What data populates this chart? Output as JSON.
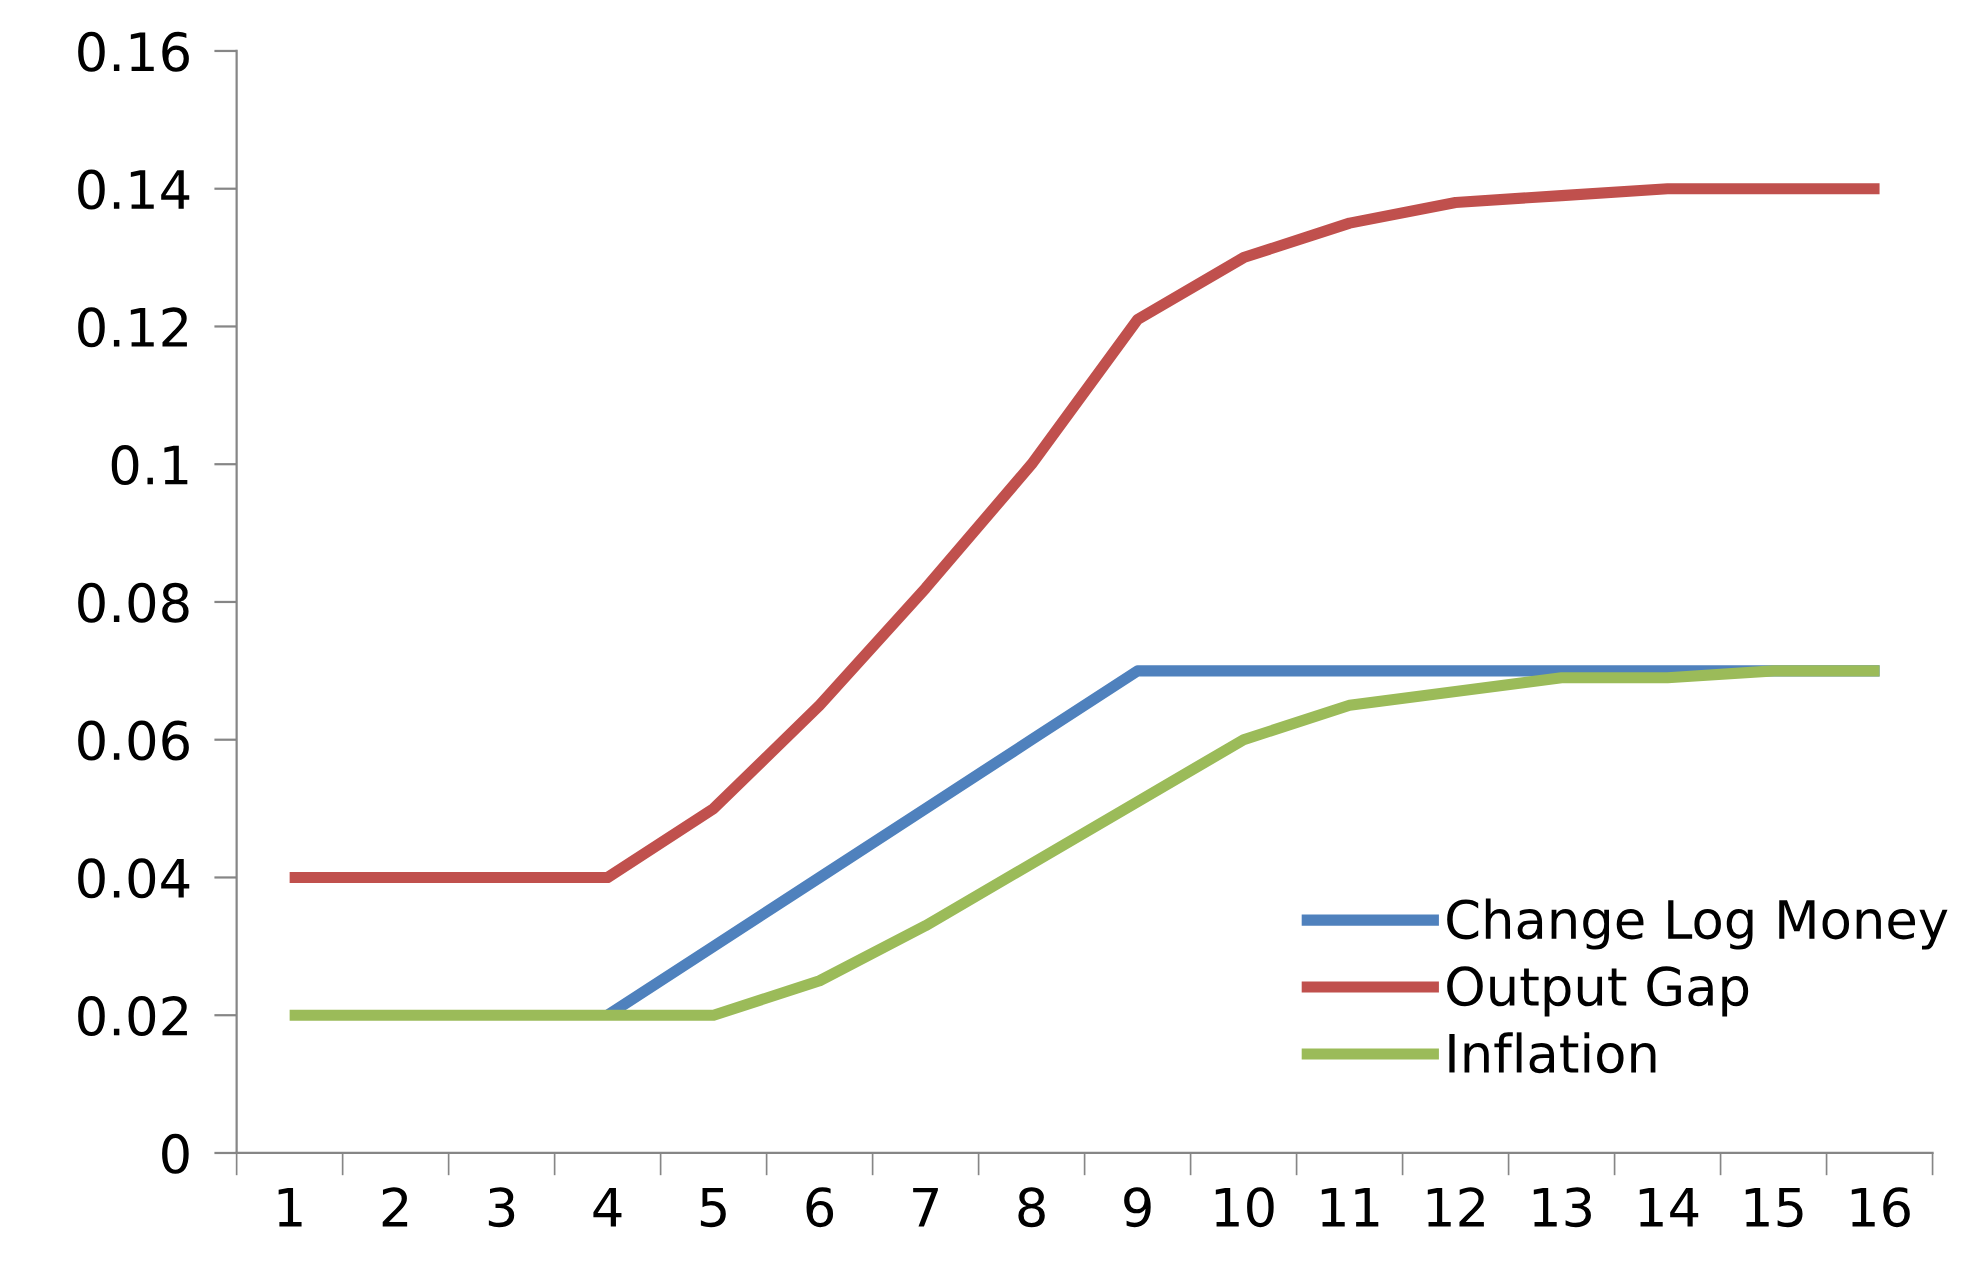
{
  "chart_data": {
    "type": "line",
    "categories": [
      "1",
      "2",
      "3",
      "4",
      "5",
      "6",
      "7",
      "8",
      "9",
      "10",
      "11",
      "12",
      "13",
      "14",
      "15",
      "16"
    ],
    "series": [
      {
        "name": "Change Log Money",
        "color": "#4f81bd",
        "values": [
          null,
          null,
          null,
          0.02,
          0.03,
          0.04,
          0.05,
          0.06,
          0.07,
          0.07,
          0.07,
          0.07,
          0.07,
          0.07,
          0.07,
          0.07
        ]
      },
      {
        "name": "Output Gap",
        "color": "#c0504d",
        "values": [
          0.04,
          0.04,
          0.04,
          0.04,
          0.05,
          0.065,
          0.082,
          0.1,
          0.121,
          0.13,
          0.135,
          0.138,
          0.139,
          0.14,
          0.14,
          0.14
        ]
      },
      {
        "name": "Inflation",
        "color": "#9bbb59",
        "values": [
          0.02,
          0.02,
          0.02,
          0.02,
          0.02,
          0.025,
          0.033,
          0.042,
          0.051,
          0.06,
          0.065,
          0.067,
          0.069,
          0.069,
          0.07,
          0.07
        ]
      }
    ],
    "ylim": [
      0,
      0.16
    ],
    "yticks": [
      0,
      0.02,
      0.04,
      0.06,
      0.08,
      {
        "value": 0.1,
        "label": "0.1"
      },
      0.12,
      0.14,
      0.16
    ],
    "grid": false,
    "legend": "bottom right",
    "marker": "none",
    "line_style": "solid"
  }
}
